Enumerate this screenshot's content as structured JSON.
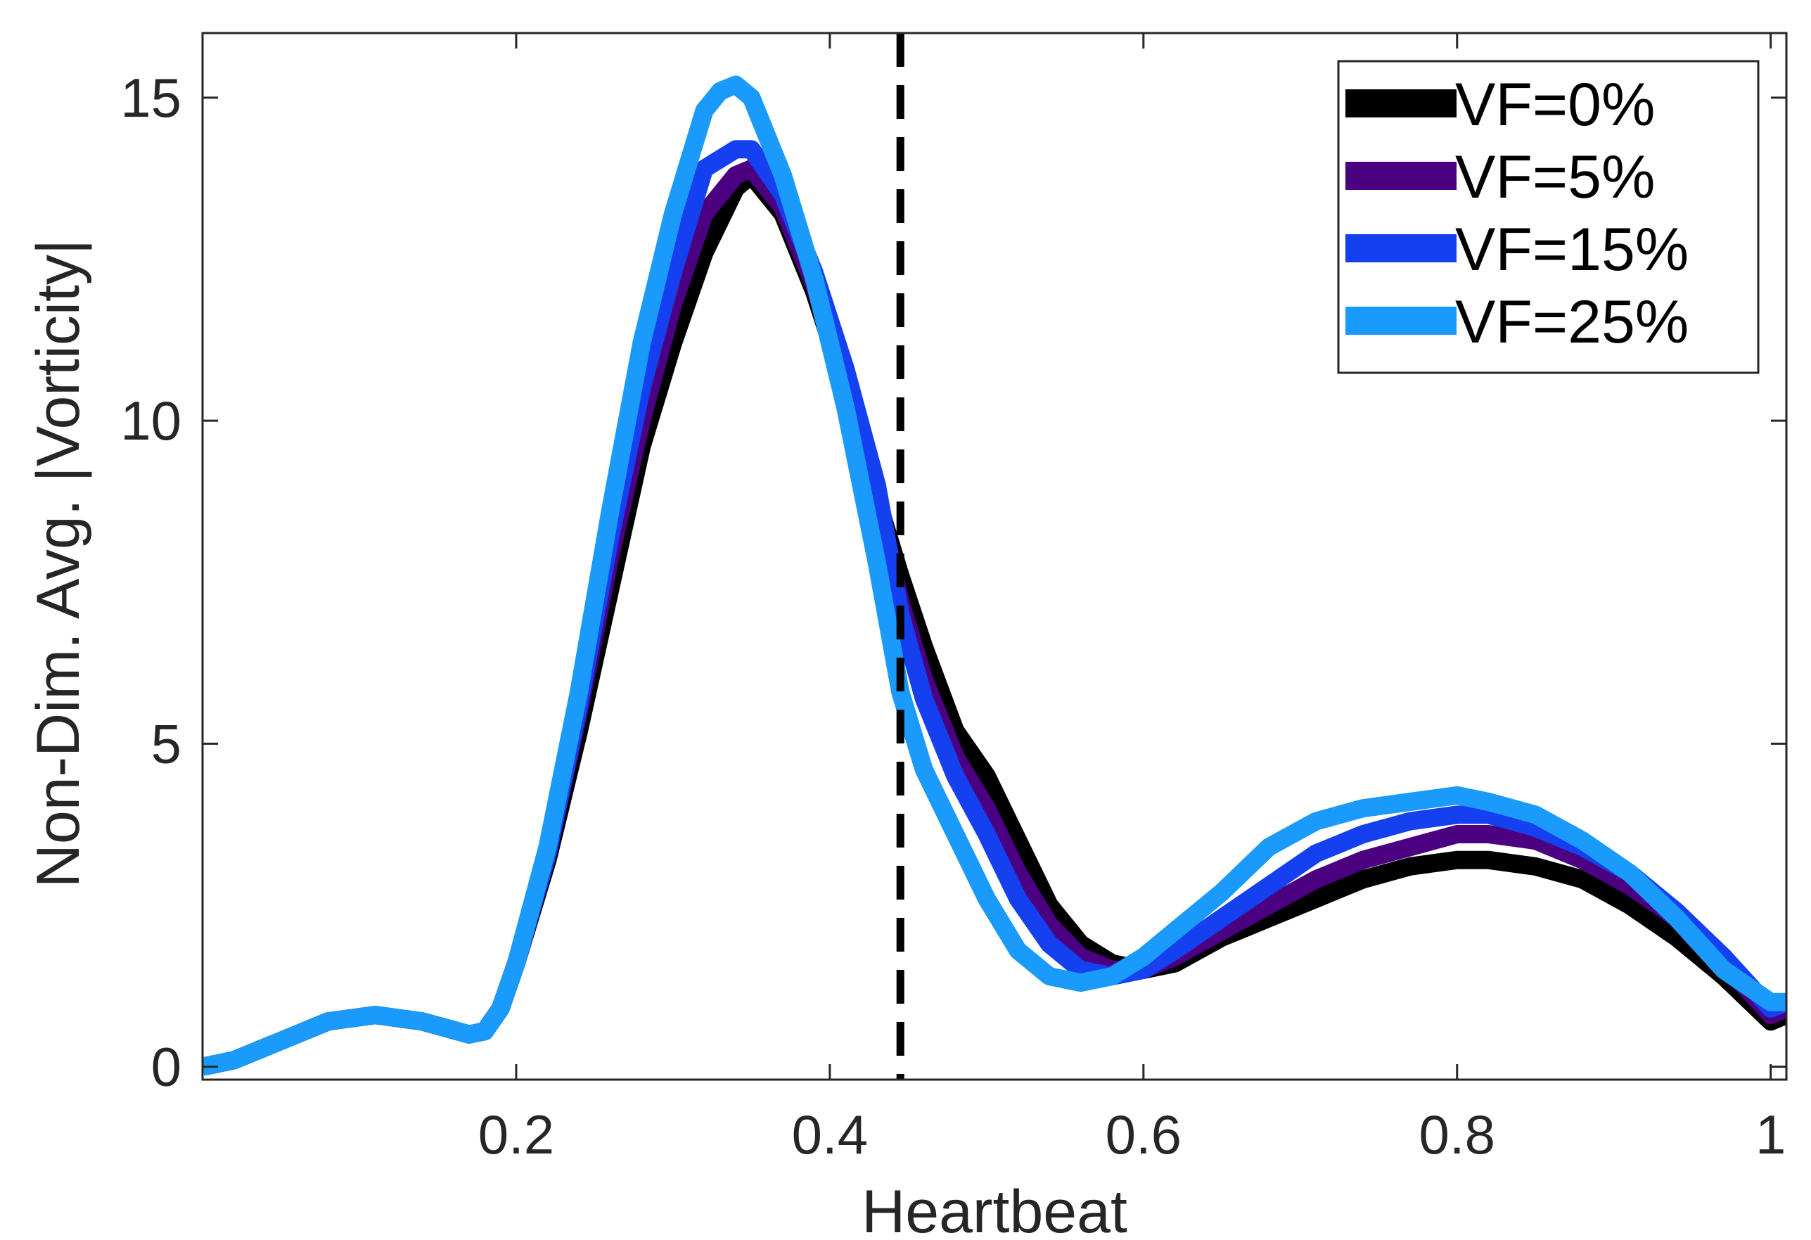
{
  "chart_data": {
    "type": "line",
    "title": "",
    "xlabel": "Heartbeat",
    "ylabel": "Non-Dim. Avg. |Vorticity|",
    "xlim": [
      0,
      1.01
    ],
    "ylim": [
      -0.2,
      16
    ],
    "xticks": [
      0.2,
      0.4,
      0.6,
      0.8,
      1
    ],
    "xtick_labels": [
      "0.2",
      "0.4",
      "0.6",
      "0.8",
      "1"
    ],
    "yticks": [
      0,
      5,
      10,
      15
    ],
    "ytick_labels": [
      "0",
      "5",
      "10",
      "15"
    ],
    "grid": false,
    "legend_position": "top-right",
    "vline": {
      "x": 0.445,
      "style": "dashed",
      "color": "#000000"
    },
    "series": [
      {
        "name": "VF=0%",
        "color": "#000000",
        "x": [
          0,
          0.02,
          0.05,
          0.08,
          0.11,
          0.14,
          0.17,
          0.18,
          0.19,
          0.2,
          0.22,
          0.24,
          0.26,
          0.28,
          0.3,
          0.32,
          0.34,
          0.35,
          0.37,
          0.39,
          0.41,
          0.43,
          0.445,
          0.46,
          0.48,
          0.5,
          0.52,
          0.54,
          0.56,
          0.58,
          0.6,
          0.62,
          0.65,
          0.68,
          0.71,
          0.74,
          0.77,
          0.8,
          0.82,
          0.85,
          0.88,
          0.91,
          0.94,
          0.97,
          1.0,
          1.01
        ],
        "values": [
          0,
          0.1,
          0.4,
          0.7,
          0.8,
          0.7,
          0.5,
          0.55,
          0.9,
          1.6,
          3.2,
          5.2,
          7.4,
          9.6,
          11.2,
          12.6,
          13.6,
          13.8,
          13.2,
          12.0,
          10.5,
          8.8,
          7.6,
          6.5,
          5.2,
          4.5,
          3.5,
          2.5,
          1.9,
          1.6,
          1.5,
          1.6,
          2.0,
          2.3,
          2.6,
          2.9,
          3.1,
          3.2,
          3.2,
          3.1,
          2.9,
          2.5,
          2.0,
          1.4,
          0.7,
          0.8
        ]
      },
      {
        "name": "VF=5%",
        "color": "#4b0082",
        "x": [
          0,
          0.02,
          0.05,
          0.08,
          0.11,
          0.14,
          0.17,
          0.18,
          0.19,
          0.2,
          0.22,
          0.24,
          0.26,
          0.28,
          0.3,
          0.32,
          0.34,
          0.35,
          0.37,
          0.39,
          0.41,
          0.43,
          0.445,
          0.46,
          0.48,
          0.5,
          0.52,
          0.54,
          0.56,
          0.58,
          0.6,
          0.62,
          0.65,
          0.68,
          0.71,
          0.74,
          0.77,
          0.8,
          0.82,
          0.85,
          0.88,
          0.91,
          0.94,
          0.97,
          1.0,
          1.01
        ],
        "values": [
          0,
          0.1,
          0.4,
          0.7,
          0.8,
          0.7,
          0.5,
          0.55,
          0.9,
          1.6,
          3.3,
          5.5,
          7.9,
          10.0,
          11.8,
          13.2,
          13.8,
          13.9,
          13.3,
          12.1,
          10.6,
          8.8,
          7.2,
          6.0,
          4.8,
          4.0,
          3.0,
          2.2,
          1.7,
          1.5,
          1.5,
          1.7,
          2.1,
          2.5,
          2.9,
          3.2,
          3.4,
          3.6,
          3.6,
          3.5,
          3.2,
          2.8,
          2.3,
          1.6,
          0.8,
          0.9
        ]
      },
      {
        "name": "VF=15%",
        "color": "#1540f0",
        "x": [
          0,
          0.02,
          0.05,
          0.08,
          0.11,
          0.14,
          0.17,
          0.18,
          0.19,
          0.2,
          0.22,
          0.24,
          0.26,
          0.28,
          0.3,
          0.32,
          0.34,
          0.35,
          0.37,
          0.39,
          0.41,
          0.43,
          0.445,
          0.46,
          0.48,
          0.5,
          0.52,
          0.54,
          0.56,
          0.58,
          0.6,
          0.62,
          0.65,
          0.68,
          0.71,
          0.74,
          0.77,
          0.8,
          0.82,
          0.85,
          0.88,
          0.91,
          0.94,
          0.97,
          1.0,
          1.01
        ],
        "values": [
          0,
          0.1,
          0.4,
          0.7,
          0.8,
          0.7,
          0.5,
          0.55,
          0.9,
          1.6,
          3.3,
          5.6,
          8.2,
          10.5,
          12.3,
          13.9,
          14.2,
          14.2,
          13.5,
          12.3,
          10.8,
          9.0,
          7.0,
          5.7,
          4.5,
          3.6,
          2.6,
          1.9,
          1.5,
          1.4,
          1.5,
          1.8,
          2.3,
          2.8,
          3.3,
          3.6,
          3.8,
          3.9,
          3.9,
          3.7,
          3.4,
          3.0,
          2.4,
          1.7,
          0.9,
          1.0
        ]
      },
      {
        "name": "VF=25%",
        "color": "#1a9afa",
        "x": [
          0,
          0.02,
          0.05,
          0.08,
          0.11,
          0.14,
          0.17,
          0.18,
          0.19,
          0.2,
          0.22,
          0.24,
          0.26,
          0.28,
          0.3,
          0.32,
          0.33,
          0.34,
          0.35,
          0.37,
          0.39,
          0.41,
          0.43,
          0.445,
          0.46,
          0.48,
          0.5,
          0.52,
          0.54,
          0.56,
          0.58,
          0.6,
          0.62,
          0.65,
          0.68,
          0.71,
          0.74,
          0.77,
          0.8,
          0.82,
          0.85,
          0.88,
          0.91,
          0.94,
          0.97,
          1.0,
          1.01
        ],
        "values": [
          0,
          0.1,
          0.4,
          0.7,
          0.8,
          0.7,
          0.5,
          0.55,
          0.9,
          1.6,
          3.4,
          5.8,
          8.6,
          11.2,
          13.2,
          14.8,
          15.1,
          15.2,
          15.0,
          13.8,
          12.2,
          10.2,
          7.8,
          5.8,
          4.6,
          3.6,
          2.6,
          1.8,
          1.4,
          1.3,
          1.4,
          1.7,
          2.1,
          2.7,
          3.4,
          3.8,
          4.0,
          4.1,
          4.2,
          4.1,
          3.9,
          3.5,
          3.0,
          2.3,
          1.5,
          1.0,
          1.0
        ]
      }
    ]
  }
}
